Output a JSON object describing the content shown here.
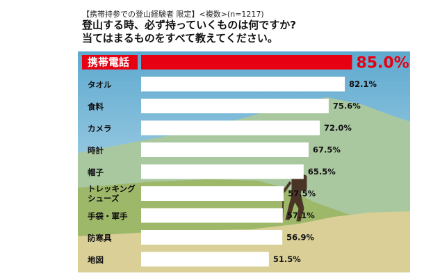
{
  "header": {
    "subtitle": "【携帯持参での登山経験者 限定】<複数>(n=1217)",
    "title_line1": "登山する時、必ず持っていくものは何ですか?",
    "title_line2": "当てはまるものをすべて教えてください。"
  },
  "chart_data": {
    "type": "bar",
    "orientation": "horizontal",
    "title": "登山する時、必ず持っていくものは何ですか? 当てはまるものをすべて教えてください。",
    "subtitle": "【携帯持参での登山経験者 限定】<複数>(n=1217)",
    "categories": [
      "携帯電話",
      "タオル",
      "食料",
      "カメラ",
      "時計",
      "帽子",
      "トレッキングシューズ",
      "手袋・軍手",
      "防寒具",
      "地図"
    ],
    "values": [
      85.0,
      82.1,
      75.6,
      72.0,
      67.5,
      65.5,
      57.5,
      57.1,
      56.9,
      51.5
    ],
    "value_labels": [
      "85.0%",
      "82.1%",
      "75.6%",
      "72.0%",
      "67.5%",
      "65.5%",
      "57.5%",
      "57.1%",
      "56.9%",
      "51.5%"
    ],
    "category_lines": [
      [
        "携帯電話"
      ],
      [
        "タオル"
      ],
      [
        "食料"
      ],
      [
        "カメラ"
      ],
      [
        "時計"
      ],
      [
        "帽子"
      ],
      [
        "トレッキング",
        "シューズ"
      ],
      [
        "手袋・軍手"
      ],
      [
        "防寒具"
      ],
      [
        "地図"
      ]
    ],
    "highlight_index": 0,
    "xlim": [
      0,
      100
    ],
    "grid": false,
    "legend": "none",
    "colors": {
      "bar": "#ffffff",
      "highlight_bar": "#e60012",
      "highlight_label_bg": "#e60012",
      "highlight_value": "#e60012",
      "text": "#111111",
      "sky_top": "#5ea9cf",
      "sky_bottom": "#cde6f1",
      "mountain_far": "#a9c8a0",
      "mountain_near": "#9eb86a",
      "ground": "#d9cf97",
      "hiker": "#4a3426"
    }
  }
}
